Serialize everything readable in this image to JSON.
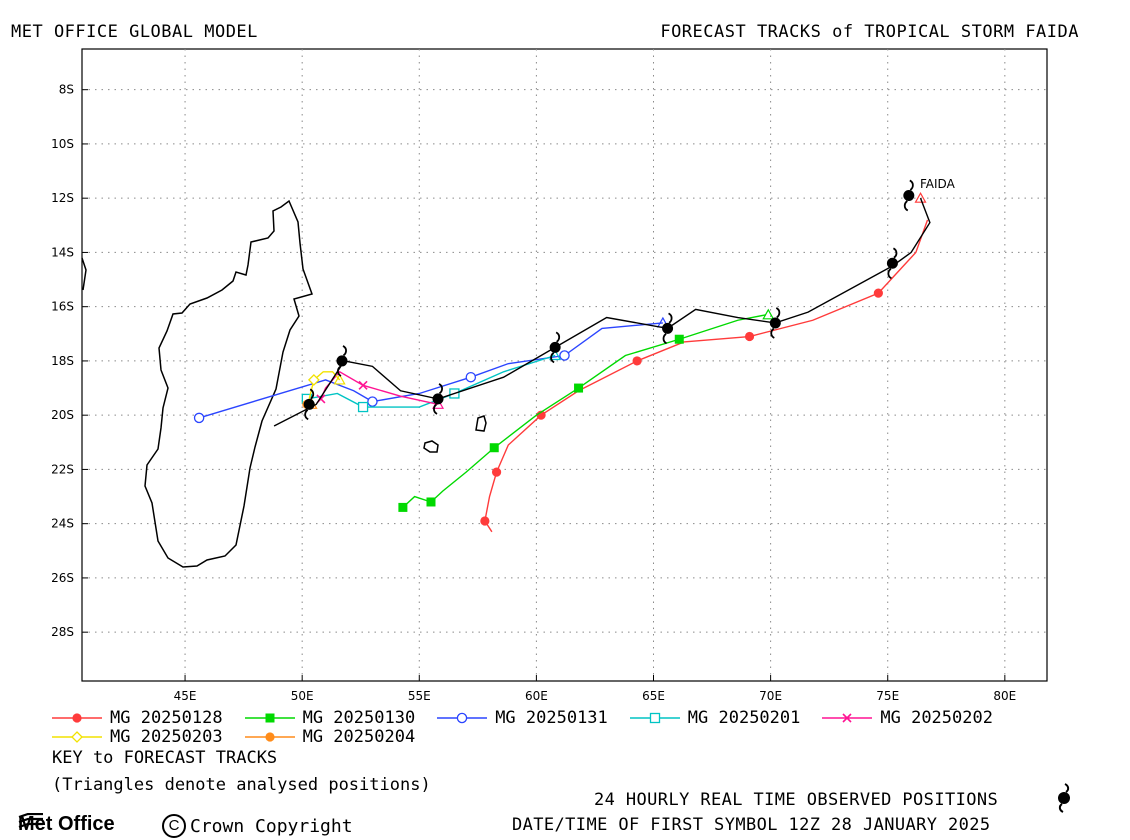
{
  "header": {
    "left": "MET OFFICE GLOBAL MODEL",
    "right": "FORECAST TRACKS of TROPICAL STORM FAIDA"
  },
  "chart_data": {
    "type": "line",
    "title": "FORECAST TRACKS of TROPICAL STORM FAIDA",
    "xlim": [
      40.6,
      81.8
    ],
    "ylim": [
      -29.8,
      -6.5
    ],
    "x_ticks": [
      45,
      50,
      55,
      60,
      65,
      70,
      75,
      80
    ],
    "x_tick_labels": [
      "45E",
      "50E",
      "55E",
      "60E",
      "65E",
      "70E",
      "75E",
      "80E"
    ],
    "y_ticks": [
      -8,
      -10,
      -12,
      -14,
      -16,
      -18,
      -20,
      -22,
      -24,
      -26,
      -28
    ],
    "y_tick_labels": [
      "8S",
      "10S",
      "12S",
      "14S",
      "16S",
      "18S",
      "20S",
      "22S",
      "24S",
      "26S",
      "28S"
    ],
    "grid": true,
    "storm_label": "FAIDA",
    "observed": {
      "name": "24 HOURLY REAL TIME OBSERVED POSITIONS",
      "color": "#000000",
      "path": [
        [
          76.4,
          -12.0
        ],
        [
          76.8,
          -12.9
        ],
        [
          76.0,
          -14.0
        ],
        [
          75.2,
          -14.5
        ],
        [
          71.6,
          -16.2
        ],
        [
          70.2,
          -16.6
        ],
        [
          68.6,
          -16.4
        ],
        [
          66.8,
          -16.1
        ],
        [
          65.6,
          -16.8
        ],
        [
          63.0,
          -16.4
        ],
        [
          60.8,
          -17.5
        ],
        [
          58.6,
          -18.6
        ],
        [
          55.8,
          -19.4
        ],
        [
          54.2,
          -19.1
        ],
        [
          53.0,
          -18.2
        ],
        [
          51.8,
          -18.0
        ],
        [
          50.6,
          -19.6
        ],
        [
          48.8,
          -20.4
        ]
      ],
      "symbols": [
        [
          75.9,
          -11.9
        ],
        [
          75.2,
          -14.4
        ],
        [
          70.2,
          -16.6
        ],
        [
          65.6,
          -16.8
        ],
        [
          60.8,
          -17.5
        ],
        [
          55.8,
          -19.4
        ],
        [
          51.7,
          -18.0
        ],
        [
          50.3,
          -19.6
        ]
      ]
    },
    "series": [
      {
        "name": "MG 20250128",
        "color": "#ff3b3b",
        "marker": "circle-filled",
        "points": [
          [
            76.7,
            -12.8
          ],
          [
            76.2,
            -14.0
          ],
          [
            74.6,
            -15.5
          ],
          [
            71.8,
            -16.5
          ],
          [
            69.1,
            -17.1
          ],
          [
            66.3,
            -17.3
          ],
          [
            64.3,
            -18.0
          ],
          [
            61.8,
            -19.1
          ],
          [
            60.2,
            -20.0
          ],
          [
            58.8,
            -21.1
          ],
          [
            58.3,
            -22.1
          ],
          [
            58.0,
            -23.0
          ],
          [
            57.8,
            -23.9
          ],
          [
            58.1,
            -24.3
          ]
        ],
        "markers": [
          [
            74.6,
            -15.5
          ],
          [
            69.1,
            -17.1
          ],
          [
            64.3,
            -18.0
          ],
          [
            60.2,
            -20.0
          ],
          [
            58.3,
            -22.1
          ],
          [
            57.8,
            -23.9
          ]
        ],
        "analysed": [
          [
            76.4,
            -12.0
          ]
        ]
      },
      {
        "name": "MG 20250130",
        "color": "#00d900",
        "marker": "square-filled",
        "points": [
          [
            69.8,
            -16.3
          ],
          [
            68.6,
            -16.5
          ],
          [
            66.1,
            -17.2
          ],
          [
            63.8,
            -17.8
          ],
          [
            61.8,
            -19.0
          ],
          [
            60.0,
            -20.0
          ],
          [
            58.2,
            -21.2
          ],
          [
            57.0,
            -22.1
          ],
          [
            56.0,
            -22.8
          ],
          [
            55.5,
            -23.2
          ],
          [
            54.8,
            -23.0
          ],
          [
            54.3,
            -23.4
          ]
        ],
        "markers": [
          [
            66.1,
            -17.2
          ],
          [
            61.8,
            -19.0
          ],
          [
            58.2,
            -21.2
          ],
          [
            55.5,
            -23.2
          ],
          [
            54.3,
            -23.4
          ]
        ],
        "analysed": [
          [
            69.9,
            -16.3
          ]
        ]
      },
      {
        "name": "MG 20250131",
        "color": "#2b45ff",
        "marker": "circle-open",
        "points": [
          [
            65.4,
            -16.6
          ],
          [
            62.8,
            -16.8
          ],
          [
            61.2,
            -17.8
          ],
          [
            58.8,
            -18.1
          ],
          [
            57.2,
            -18.6
          ],
          [
            55.0,
            -19.2
          ],
          [
            53.0,
            -19.5
          ],
          [
            52.2,
            -19.1
          ],
          [
            51.0,
            -18.7
          ],
          [
            45.6,
            -20.1
          ]
        ],
        "markers": [
          [
            61.2,
            -17.8
          ],
          [
            57.2,
            -18.6
          ],
          [
            53.0,
            -19.5
          ],
          [
            45.6,
            -20.1
          ]
        ],
        "analysed": [
          [
            65.4,
            -16.6
          ]
        ]
      },
      {
        "name": "MG 20250201",
        "color": "#00c4c4",
        "marker": "square-open",
        "points": [
          [
            60.8,
            -17.8
          ],
          [
            58.6,
            -18.4
          ],
          [
            56.5,
            -19.2
          ],
          [
            55.0,
            -19.7
          ],
          [
            53.6,
            -19.7
          ],
          [
            52.6,
            -19.7
          ],
          [
            51.5,
            -19.2
          ],
          [
            50.2,
            -19.4
          ]
        ],
        "markers": [
          [
            56.5,
            -19.2
          ],
          [
            52.6,
            -19.7
          ],
          [
            50.2,
            -19.4
          ]
        ],
        "analysed": [
          [
            60.8,
            -17.8
          ]
        ]
      },
      {
        "name": "MG 20250202",
        "color": "#ff1493",
        "marker": "x",
        "points": [
          [
            55.8,
            -19.6
          ],
          [
            54.2,
            -19.3
          ],
          [
            52.6,
            -18.9
          ],
          [
            51.6,
            -18.4
          ],
          [
            51.0,
            -19.0
          ],
          [
            50.8,
            -19.4
          ]
        ],
        "markers": [
          [
            52.6,
            -18.9
          ],
          [
            50.8,
            -19.4
          ]
        ],
        "analysed": [
          [
            55.8,
            -19.6
          ]
        ]
      },
      {
        "name": "MG 20250203",
        "color": "#f2e200",
        "marker": "diamond-open",
        "points": [
          [
            51.6,
            -18.7
          ],
          [
            51.3,
            -18.4
          ],
          [
            50.9,
            -18.4
          ],
          [
            50.5,
            -18.7
          ],
          [
            50.3,
            -19.4
          ]
        ],
        "markers": [
          [
            50.5,
            -18.7
          ]
        ],
        "analysed": [
          [
            51.6,
            -18.7
          ]
        ]
      },
      {
        "name": "MG 20250204",
        "color": "#ff8c1a",
        "marker": "circle-filled",
        "points": [
          [
            50.4,
            -19.6
          ],
          [
            50.2,
            -19.6
          ]
        ],
        "markers": [
          [
            50.2,
            -19.6
          ]
        ],
        "analysed": [
          [
            50.4,
            -19.6
          ]
        ]
      }
    ]
  },
  "key_label": "KEY to FORECAST TRACKS",
  "triangle_note": "(Triangles denote analysed positions)",
  "footer": {
    "observed_note": "24 HOURLY REAL TIME OBSERVED POSITIONS",
    "date_note": "DATE/TIME OF FIRST SYMBOL 12Z 28 JANUARY 2025",
    "logo": "Met Office",
    "copyright": "Crown Copyright"
  }
}
